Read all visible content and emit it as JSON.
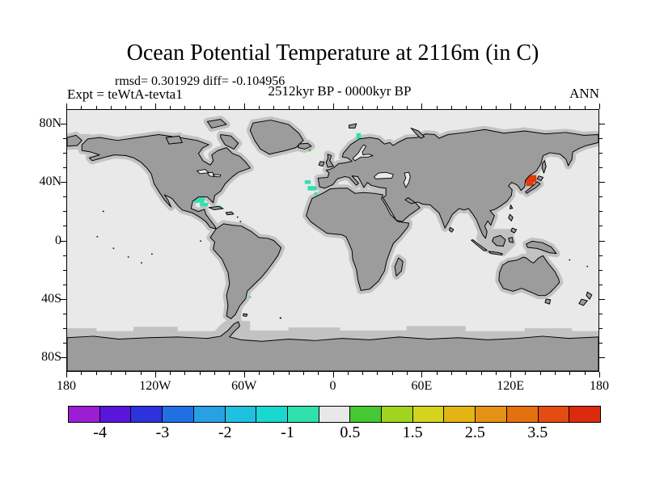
{
  "title": "Ocean Potential Temperature at 2116m (in C)",
  "stats_line": "rmsd= 0.301929 diff= -0.104956",
  "header": {
    "experiment_label": "Expt = teWtA-tevta1",
    "period_label": "2512kyr BP - 0000kyr BP",
    "season_label": "ANN"
  },
  "map": {
    "x_tick_labels": [
      "180",
      "120W",
      "60W",
      "0",
      "60E",
      "120E",
      "180"
    ],
    "y_tick_labels": [
      "80N",
      "40N",
      "0",
      "40S",
      "80S"
    ],
    "colors": {
      "ocean": "#E9E9E9",
      "land": "#9C9C9C",
      "land_fringe": "#C2C2C2",
      "coastline": "#000000",
      "frame": "#000000"
    }
  },
  "colorbar": {
    "labels": [
      "-4",
      "-3",
      "-2",
      "-1",
      "0.5",
      "1.5",
      "2.5",
      "3.5"
    ],
    "colors": [
      "#9B1ED4",
      "#5A14DC",
      "#2E32DC",
      "#2070E4",
      "#28A0E4",
      "#20C0E0",
      "#18D8D0",
      "#30E0AC",
      "#E8E8E8",
      "#46C832",
      "#A0D41E",
      "#D4D41E",
      "#E4B414",
      "#E49214",
      "#E47010",
      "#E44C12",
      "#DC2A0E"
    ]
  },
  "chart_data": {
    "type": "heatmap",
    "title": "Ocean Potential Temperature at 2116m (in C)",
    "subtitle": "2512kyr BP - 0000kyr BP",
    "experiment": "teWtA-tevta1",
    "season": "ANN",
    "units": "C",
    "rmsd": 0.301929,
    "diff": -0.104956,
    "projection": "equirectangular world map, lon 180W-180E, lat 90S-90N",
    "xlabel_ticks": [
      "180",
      "120W",
      "60W",
      "0",
      "60E",
      "120E",
      "180"
    ],
    "ylabel_ticks": [
      "80N",
      "40N",
      "0",
      "40S",
      "80S"
    ],
    "grid": false,
    "legend_position": "horizontal colorbar below map",
    "colorbar_levels": [
      -4,
      -3.5,
      -3,
      -2.5,
      -2,
      -1.5,
      -1,
      -0.5,
      0.5,
      1,
      1.5,
      2,
      2.5,
      3,
      3.5,
      4
    ],
    "colorbar_colors": [
      "#9B1ED4",
      "#5A14DC",
      "#2E32DC",
      "#2070E4",
      "#28A0E4",
      "#20C0E0",
      "#18D8D0",
      "#30E0AC",
      "#E8E8E8",
      "#46C832",
      "#A0D41E",
      "#D4D41E",
      "#E4B414",
      "#E49214",
      "#E47010",
      "#E44C12",
      "#DC2A0E"
    ],
    "background_bin": "-0.5 to 0.5 (near-zero difference, light gray ocean)",
    "anomalies": [
      {
        "name": "sea-of-japan-1",
        "region": "Sea of Japan",
        "lon": [
          129,
          138
        ],
        "lat": [
          40,
          45
        ],
        "value_bin": ">= 3.5",
        "color": "#E2380E"
      },
      {
        "name": "sea-of-japan-2",
        "region": "Sea of Japan (south lobe)",
        "lon": [
          131,
          136
        ],
        "lat": [
          37.5,
          40
        ],
        "value_bin": ">= 3.5",
        "color": "#E2380E"
      },
      {
        "name": "gulf-of-mexico-1",
        "region": "Gulf of Mexico",
        "lon": [
          -94,
          -87
        ],
        "lat": [
          26,
          29.5
        ],
        "value_bin": "-1 to -0.5",
        "color": "#30E0AC"
      },
      {
        "name": "gulf-of-mexico-2",
        "region": "Gulf of Mexico (south lobe)",
        "lon": [
          -90,
          -84.5
        ],
        "lat": [
          23.5,
          26
        ],
        "value_bin": "-1 to -0.5",
        "color": "#30E0AC"
      },
      {
        "name": "cuba-speck",
        "region": "near Cuba",
        "lon": [
          -79,
          -75.5
        ],
        "lat": [
          22.6,
          24
        ],
        "value_bin": "-1 to -0.5",
        "color": "#30E0AC"
      },
      {
        "name": "iberia-1",
        "region": "NE Atlantic west of Iberia",
        "lon": [
          -19,
          -15
        ],
        "lat": [
          39,
          41.5
        ],
        "value_bin": "-1 to -0.5",
        "color": "#30E0AC"
      },
      {
        "name": "iberia-2",
        "region": "NE Atlantic west of Iberia",
        "lon": [
          -17,
          -11
        ],
        "lat": [
          34.5,
          37.5
        ],
        "value_bin": "-1 to -0.5",
        "color": "#30E0AC"
      },
      {
        "name": "iberia-3",
        "region": "west of Gibraltar",
        "lon": [
          -12.5,
          -10.5
        ],
        "lat": [
          31.5,
          33.2
        ],
        "value_bin": "-1 to -0.5",
        "color": "#30E0AC"
      },
      {
        "name": "norway-coast-1",
        "region": "Norwegian coast",
        "lon": [
          16,
          19
        ],
        "lat": [
          70,
          74
        ],
        "value_bin": "-1 to -0.5",
        "color": "#30E0AC"
      },
      {
        "name": "norway-coast-2",
        "region": "Norwegian coast",
        "lon": [
          14,
          17
        ],
        "lat": [
          63,
          68.5
        ],
        "value_bin": "-1 to -0.5",
        "color": "#30E0AC"
      },
      {
        "name": "faroe-speck",
        "region": "near Faroe/Iceland",
        "lon": [
          -16.5,
          -14.8
        ],
        "lat": [
          61.5,
          63
        ],
        "value_bin": "0.5 to 1",
        "color": "#46C832"
      },
      {
        "name": "argentine-speck",
        "region": "Argentine basin",
        "lon": [
          -56.8,
          -55.2
        ],
        "lat": [
          -39.6,
          -38.5
        ],
        "value_bin": "-1 to -0.5",
        "color": "#30E0AC"
      }
    ]
  }
}
